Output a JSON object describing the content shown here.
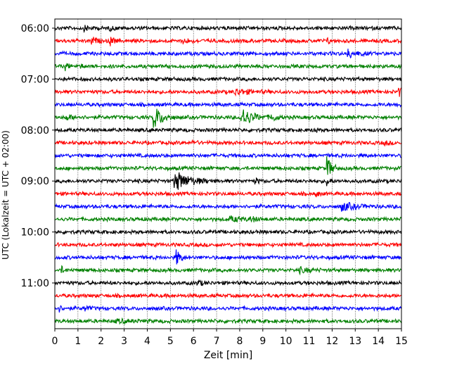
{
  "chart_data": {
    "type": "line",
    "title": "",
    "xlabel": "Zeit  [min]",
    "ylabel": "UTC (Lokalzeit = UTC + 02:00)",
    "xlim": [
      0,
      15
    ],
    "x_ticks": [
      "0",
      "1",
      "2",
      "3",
      "4",
      "5",
      "6",
      "7",
      "8",
      "9",
      "10",
      "11",
      "12",
      "13",
      "14",
      "15"
    ],
    "y_ticks": [
      "06:00",
      "07:00",
      "08:00",
      "09:00",
      "10:00",
      "11:00"
    ],
    "row_minutes": 15,
    "rows": 24,
    "start_time": "06:00",
    "grid": "vertical-dotted",
    "trace_colors": [
      "#000000",
      "#ff0000",
      "#0000ff",
      "#008000"
    ],
    "events": [
      {
        "row": 0,
        "t": 1.3,
        "amp": 0.25,
        "len": 0.8
      },
      {
        "row": 0,
        "t": 2.4,
        "amp": 0.2,
        "len": 0.6
      },
      {
        "row": 1,
        "t": 1.6,
        "amp": 0.5,
        "len": 0.5
      },
      {
        "row": 1,
        "t": 2.4,
        "amp": 0.6,
        "len": 0.4
      },
      {
        "row": 1,
        "t": 5.6,
        "amp": 0.3,
        "len": 0.6
      },
      {
        "row": 1,
        "t": 11.8,
        "amp": 0.3,
        "len": 0.4
      },
      {
        "row": 2,
        "t": 12.7,
        "amp": 0.5,
        "len": 1.0
      },
      {
        "row": 3,
        "t": 0.5,
        "amp": 0.4,
        "len": 0.3
      },
      {
        "row": 3,
        "t": 1.1,
        "amp": 0.3,
        "len": 0.3
      },
      {
        "row": 5,
        "t": 7.8,
        "amp": 0.4,
        "len": 1.6
      },
      {
        "row": 5,
        "t": 14.9,
        "amp": 0.6,
        "len": 0.3
      },
      {
        "row": 6,
        "t": 14.8,
        "amp": 0.3,
        "len": 0.4
      },
      {
        "row": 7,
        "t": 4.3,
        "amp": 1.6,
        "len": 0.9
      },
      {
        "row": 7,
        "t": 8.1,
        "amp": 1.3,
        "len": 1.2
      },
      {
        "row": 7,
        "t": 9.4,
        "amp": 0.5,
        "len": 0.6
      },
      {
        "row": 7,
        "t": 0.5,
        "amp": 0.3,
        "len": 1.0
      },
      {
        "row": 8,
        "t": 11.2,
        "amp": 0.4,
        "len": 0.3
      },
      {
        "row": 9,
        "t": 6.0,
        "amp": 0.3,
        "len": 0.3
      },
      {
        "row": 9,
        "t": 14.3,
        "amp": 0.3,
        "len": 0.3
      },
      {
        "row": 11,
        "t": 11.8,
        "amp": 1.5,
        "len": 0.5
      },
      {
        "row": 12,
        "t": 5.2,
        "amp": 1.4,
        "len": 1.6
      },
      {
        "row": 12,
        "t": 11.8,
        "amp": 0.6,
        "len": 0.3
      },
      {
        "row": 12,
        "t": 8.7,
        "amp": 0.3,
        "len": 0.4
      },
      {
        "row": 13,
        "t": 11.3,
        "amp": 0.4,
        "len": 0.3
      },
      {
        "row": 14,
        "t": 12.4,
        "amp": 0.6,
        "len": 1.4
      },
      {
        "row": 15,
        "t": 7.6,
        "amp": 0.3,
        "len": 1.6
      },
      {
        "row": 15,
        "t": 8.5,
        "amp": 0.3,
        "len": 0.5
      },
      {
        "row": 18,
        "t": 5.3,
        "amp": 1.0,
        "len": 0.4
      },
      {
        "row": 19,
        "t": 0.3,
        "amp": 0.4,
        "len": 0.3
      },
      {
        "row": 19,
        "t": 10.6,
        "amp": 0.3,
        "len": 1.0
      },
      {
        "row": 20,
        "t": 6.2,
        "amp": 0.3,
        "len": 0.6
      },
      {
        "row": 22,
        "t": 0.2,
        "amp": 0.4,
        "len": 0.3
      },
      {
        "row": 22,
        "t": 1.3,
        "amp": 0.4,
        "len": 0.4
      },
      {
        "row": 23,
        "t": 2.7,
        "amp": 0.2,
        "len": 1.5
      }
    ]
  }
}
